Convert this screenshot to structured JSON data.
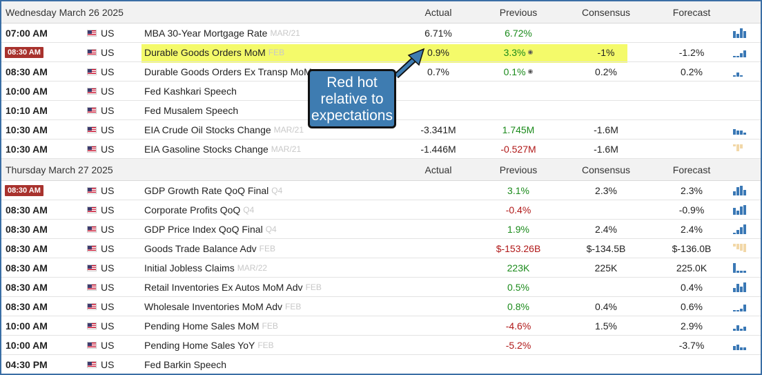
{
  "day1": {
    "date": "Wednesday March 26 2025",
    "col_actual": "Actual",
    "col_previous": "Previous",
    "col_consensus": "Consensus",
    "col_forecast": "Forecast",
    "rows": [
      {
        "time": "07:00 AM",
        "badge": false,
        "country": "US",
        "event": "MBA 30-Year Mortgage Rate",
        "period": "MAR/21",
        "actual": "6.71%",
        "previous": "6.72%",
        "prev_color": "green",
        "revised": false,
        "consensus": "",
        "forecast": ""
      },
      {
        "time": "08:30 AM",
        "badge": true,
        "country": "US",
        "event": "Durable Goods Orders MoM",
        "period": "FEB",
        "actual": "0.9%",
        "previous": "3.3%",
        "prev_color": "green",
        "revised": true,
        "consensus": "-1%",
        "forecast": "-1.2%"
      },
      {
        "time": "08:30 AM",
        "badge": false,
        "country": "US",
        "event": "Durable Goods Orders Ex Transp MoM",
        "period": "",
        "actual": "0.7%",
        "previous": "0.1%",
        "prev_color": "green",
        "revised": true,
        "consensus": "0.2%",
        "forecast": "0.2%"
      },
      {
        "time": "10:00 AM",
        "badge": false,
        "country": "US",
        "event": "Fed Kashkari Speech",
        "period": "",
        "actual": "",
        "previous": "",
        "prev_color": "",
        "revised": false,
        "consensus": "",
        "forecast": ""
      },
      {
        "time": "10:10 AM",
        "badge": false,
        "country": "US",
        "event": "Fed Musalem Speech",
        "period": "",
        "actual": "",
        "previous": "",
        "prev_color": "",
        "revised": false,
        "consensus": "",
        "forecast": ""
      },
      {
        "time": "10:30 AM",
        "badge": false,
        "country": "US",
        "event": "EIA Crude Oil Stocks Change",
        "period": "MAR/21",
        "actual": "-3.341M",
        "previous": "1.745M",
        "prev_color": "green",
        "revised": false,
        "consensus": "-1.6M",
        "forecast": ""
      },
      {
        "time": "10:30 AM",
        "badge": false,
        "country": "US",
        "event": "EIA Gasoline Stocks Change",
        "period": "MAR/21",
        "actual": "-1.446M",
        "previous": "-0.527M",
        "prev_color": "red",
        "revised": false,
        "consensus": "-1.6M",
        "forecast": ""
      }
    ]
  },
  "day2": {
    "date": "Thursday March 27 2025",
    "col_actual": "Actual",
    "col_previous": "Previous",
    "col_consensus": "Consensus",
    "col_forecast": "Forecast",
    "rows": [
      {
        "time": "08:30 AM",
        "badge": true,
        "country": "US",
        "event": "GDP Growth Rate QoQ Final",
        "period": "Q4",
        "actual": "",
        "previous": "3.1%",
        "prev_color": "green",
        "revised": false,
        "consensus": "2.3%",
        "forecast": "2.3%"
      },
      {
        "time": "08:30 AM",
        "badge": false,
        "country": "US",
        "event": "Corporate Profits QoQ",
        "period": "Q4",
        "actual": "",
        "previous": "-0.4%",
        "prev_color": "red",
        "revised": false,
        "consensus": "",
        "forecast": "-0.9%"
      },
      {
        "time": "08:30 AM",
        "badge": false,
        "country": "US",
        "event": "GDP Price Index QoQ Final",
        "period": "Q4",
        "actual": "",
        "previous": "1.9%",
        "prev_color": "green",
        "revised": false,
        "consensus": "2.4%",
        "forecast": "2.4%"
      },
      {
        "time": "08:30 AM",
        "badge": false,
        "country": "US",
        "event": "Goods Trade Balance Adv",
        "period": "FEB",
        "actual": "",
        "previous": "$-153.26B",
        "prev_color": "red",
        "revised": false,
        "consensus": "$-134.5B",
        "forecast": "$-136.0B"
      },
      {
        "time": "08:30 AM",
        "badge": false,
        "country": "US",
        "event": "Initial Jobless Claims",
        "period": "MAR/22",
        "actual": "",
        "previous": "223K",
        "prev_color": "green",
        "revised": false,
        "consensus": "225K",
        "forecast": "225.0K"
      },
      {
        "time": "08:30 AM",
        "badge": false,
        "country": "US",
        "event": "Retail Inventories Ex Autos MoM Adv",
        "period": "FEB",
        "actual": "",
        "previous": "0.5%",
        "prev_color": "green",
        "revised": false,
        "consensus": "",
        "forecast": "0.4%"
      },
      {
        "time": "08:30 AM",
        "badge": false,
        "country": "US",
        "event": "Wholesale Inventories MoM Adv",
        "period": "FEB",
        "actual": "",
        "previous": "0.8%",
        "prev_color": "green",
        "revised": false,
        "consensus": "0.4%",
        "forecast": "0.6%"
      },
      {
        "time": "10:00 AM",
        "badge": false,
        "country": "US",
        "event": "Pending Home Sales MoM",
        "period": "FEB",
        "actual": "",
        "previous": "-4.6%",
        "prev_color": "red",
        "revised": false,
        "consensus": "1.5%",
        "forecast": "2.9%"
      },
      {
        "time": "10:00 AM",
        "badge": false,
        "country": "US",
        "event": "Pending Home Sales YoY",
        "period": "FEB",
        "actual": "",
        "previous": "-5.2%",
        "prev_color": "red",
        "revised": false,
        "consensus": "",
        "forecast": "-3.7%"
      },
      {
        "time": "04:30 PM",
        "badge": false,
        "country": "US",
        "event": "Fed Barkin Speech",
        "period": "",
        "actual": "",
        "previous": "",
        "prev_color": "",
        "revised": false,
        "consensus": "",
        "forecast": ""
      }
    ]
  },
  "annotation": {
    "line1": "Red hot",
    "line2": "relative to",
    "line3": "expectations"
  },
  "colors": {
    "badge": "#a8322d",
    "highlight": "#f4fa6a",
    "callout": "#3e7cb1",
    "green": "#1a8a1a",
    "red": "#b01818",
    "frame": "#3a6ea5"
  },
  "icons": {
    "flag": "us-flag-icon",
    "sparkline": "mini-bar-chart-icon",
    "revised": "revised-marker-icon"
  }
}
